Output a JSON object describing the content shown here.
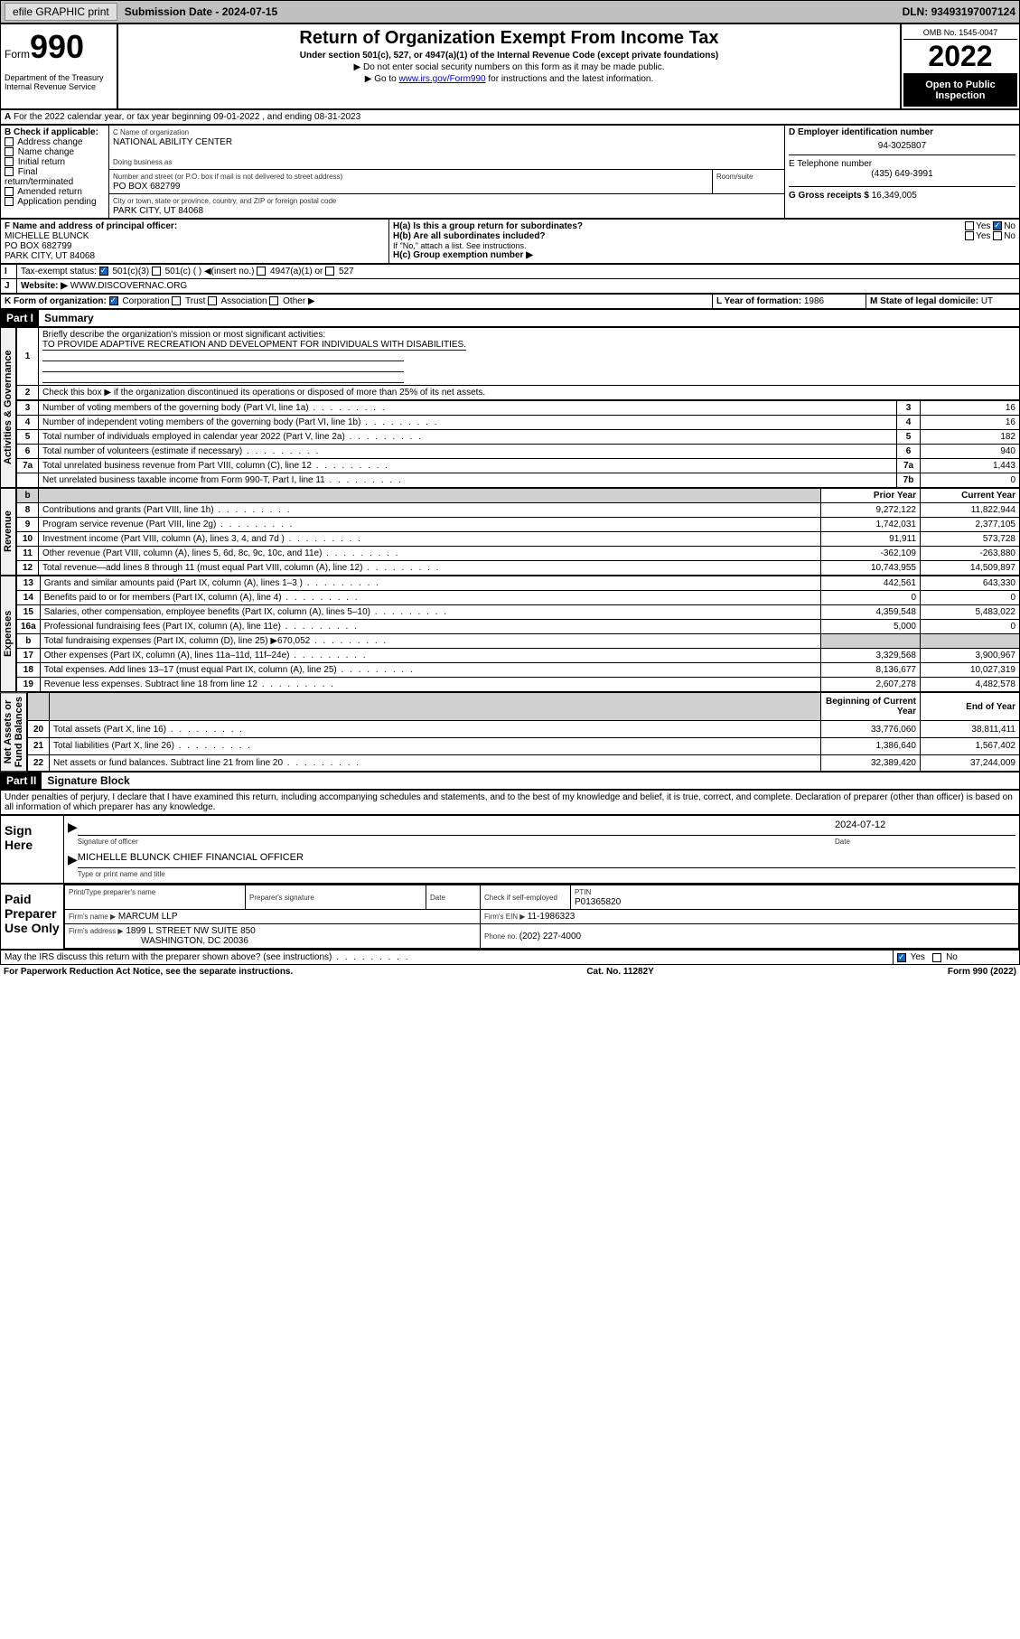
{
  "topbar": {
    "efile": "efile GRAPHIC print",
    "subdate_lbl": "Submission Date - ",
    "subdate": "2024-07-15",
    "dln_lbl": "DLN: ",
    "dln": "93493197007124"
  },
  "header": {
    "form_lbl": "Form",
    "form_no": "990",
    "dept": "Department of the Treasury\nInternal Revenue Service",
    "title": "Return of Organization Exempt From Income Tax",
    "sub": "Under section 501(c), 527, or 4947(a)(1) of the Internal Revenue Code (except private foundations)",
    "note1": "▶ Do not enter social security numbers on this form as it may be made public.",
    "note2_pre": "▶ Go to ",
    "note2_link": "www.irs.gov/Form990",
    "note2_post": " for instructions and the latest information.",
    "omb": "OMB No. 1545-0047",
    "year": "2022",
    "open": "Open to Public Inspection"
  },
  "A": "For the 2022 calendar year, or tax year beginning 09-01-2022  , and ending 08-31-2023",
  "B": {
    "lbl": "B Check if applicable:",
    "opts": [
      "Address change",
      "Name change",
      "Initial return",
      "Final return/terminated",
      "Amended return",
      "Application pending"
    ]
  },
  "C": {
    "name_lbl": "C Name of organization",
    "name": "NATIONAL ABILITY CENTER",
    "dba_lbl": "Doing business as",
    "dba": "",
    "street_lbl": "Number and street (or P.O. box if mail is not delivered to street address)",
    "room_lbl": "Room/suite",
    "street": "PO BOX 682799",
    "city_lbl": "City or town, state or province, country, and ZIP or foreign postal code",
    "city": "PARK CITY, UT  84068"
  },
  "D": {
    "lbl": "D Employer identification number",
    "val": "94-3025807"
  },
  "E": {
    "lbl": "E Telephone number",
    "val": "(435) 649-3991"
  },
  "G": {
    "lbl": "G Gross receipts $ ",
    "val": "16,349,005"
  },
  "F": {
    "lbl": "F Name and address of principal officer:",
    "name": "MICHELLE BLUNCK",
    "addr1": "PO BOX 682799",
    "addr2": "PARK CITY, UT  84068"
  },
  "H": {
    "a": "H(a)  Is this a group return for subordinates?",
    "b": "H(b)  Are all subordinates included?",
    "bnote": "If \"No,\" attach a list. See instructions.",
    "c": "H(c)  Group exemption number ▶",
    "yes": "Yes",
    "no": "No"
  },
  "I": {
    "lbl": "Tax-exempt status:",
    "o1": "501(c)(3)",
    "o2": "501(c) (  ) ◀(insert no.)",
    "o3": "4947(a)(1) or",
    "o4": "527"
  },
  "J": {
    "lbl": "Website: ▶",
    "val": "WWW.DISCOVERNAC.ORG"
  },
  "K": {
    "lbl": "K Form of organization:",
    "o1": "Corporation",
    "o2": "Trust",
    "o3": "Association",
    "o4": "Other ▶"
  },
  "L": {
    "lbl": "L Year of formation: ",
    "val": "1986"
  },
  "M": {
    "lbl": "M State of legal domicile: ",
    "val": "UT"
  },
  "partI": {
    "hdr": "Part I",
    "title": "Summary",
    "q1": "Briefly describe the organization's mission or most significant activities:",
    "q1a": "TO PROVIDE ADAPTIVE RECREATION AND DEVELOPMENT FOR INDIVIDUALS WITH DISABILITIES.",
    "q2": "Check this box ▶      if the organization discontinued its operations or disposed of more than 25% of its net assets.",
    "lines3_7": [
      {
        "n": "3",
        "t": "Number of voting members of the governing body (Part VI, line 1a)",
        "bn": "3",
        "v": "16"
      },
      {
        "n": "4",
        "t": "Number of independent voting members of the governing body (Part VI, line 1b)",
        "bn": "4",
        "v": "16"
      },
      {
        "n": "5",
        "t": "Total number of individuals employed in calendar year 2022 (Part V, line 2a)",
        "bn": "5",
        "v": "182"
      },
      {
        "n": "6",
        "t": "Total number of volunteers (estimate if necessary)",
        "bn": "6",
        "v": "940"
      },
      {
        "n": "7a",
        "t": "Total unrelated business revenue from Part VIII, column (C), line 12",
        "bn": "7a",
        "v": "1,443"
      },
      {
        "n": "",
        "t": "Net unrelated business taxable income from Form 990-T, Part I, line 11",
        "bn": "7b",
        "v": "0"
      }
    ],
    "tbl_hdr_prior": "Prior Year",
    "tbl_hdr_curr": "Current Year",
    "revenue": [
      {
        "n": "8",
        "t": "Contributions and grants (Part VIII, line 1h)",
        "p": "9,272,122",
        "c": "11,822,944"
      },
      {
        "n": "9",
        "t": "Program service revenue (Part VIII, line 2g)",
        "p": "1,742,031",
        "c": "2,377,105"
      },
      {
        "n": "10",
        "t": "Investment income (Part VIII, column (A), lines 3, 4, and 7d )",
        "p": "91,911",
        "c": "573,728"
      },
      {
        "n": "11",
        "t": "Other revenue (Part VIII, column (A), lines 5, 6d, 8c, 9c, 10c, and 11e)",
        "p": "-362,109",
        "c": "-263,880"
      },
      {
        "n": "12",
        "t": "Total revenue—add lines 8 through 11 (must equal Part VIII, column (A), line 12)",
        "p": "10,743,955",
        "c": "14,509,897"
      }
    ],
    "expenses": [
      {
        "n": "13",
        "t": "Grants and similar amounts paid (Part IX, column (A), lines 1–3 )",
        "p": "442,561",
        "c": "643,330"
      },
      {
        "n": "14",
        "t": "Benefits paid to or for members (Part IX, column (A), line 4)",
        "p": "0",
        "c": "0"
      },
      {
        "n": "15",
        "t": "Salaries, other compensation, employee benefits (Part IX, column (A), lines 5–10)",
        "p": "4,359,548",
        "c": "5,483,022"
      },
      {
        "n": "16a",
        "t": "Professional fundraising fees (Part IX, column (A), line 11e)",
        "p": "5,000",
        "c": "0"
      },
      {
        "n": "b",
        "t": "Total fundraising expenses (Part IX, column (D), line 25) ▶670,052",
        "p": "",
        "c": "",
        "shade": true
      },
      {
        "n": "17",
        "t": "Other expenses (Part IX, column (A), lines 11a–11d, 11f–24e)",
        "p": "3,329,568",
        "c": "3,900,967"
      },
      {
        "n": "18",
        "t": "Total expenses. Add lines 13–17 (must equal Part IX, column (A), line 25)",
        "p": "8,136,677",
        "c": "10,027,319"
      },
      {
        "n": "19",
        "t": "Revenue less expenses. Subtract line 18 from line 12",
        "p": "2,607,278",
        "c": "4,482,578"
      }
    ],
    "na_hdr_beg": "Beginning of Current Year",
    "na_hdr_end": "End of Year",
    "netassets": [
      {
        "n": "20",
        "t": "Total assets (Part X, line 16)",
        "p": "33,776,060",
        "c": "38,811,411"
      },
      {
        "n": "21",
        "t": "Total liabilities (Part X, line 26)",
        "p": "1,386,640",
        "c": "1,567,402"
      },
      {
        "n": "22",
        "t": "Net assets or fund balances. Subtract line 21 from line 20",
        "p": "32,389,420",
        "c": "37,244,009"
      }
    ],
    "vlabels": {
      "ag": "Activities & Governance",
      "rev": "Revenue",
      "exp": "Expenses",
      "na": "Net Assets or\nFund Balances"
    }
  },
  "partII": {
    "hdr": "Part II",
    "title": "Signature Block",
    "decl": "Under penalties of perjury, I declare that I have examined this return, including accompanying schedules and statements, and to the best of my knowledge and belief, it is true, correct, and complete. Declaration of preparer (other than officer) is based on all information of which preparer has any knowledge.",
    "sign_here": "Sign Here",
    "sig_officer": "Signature of officer",
    "date": "Date",
    "sig_date": "2024-07-12",
    "officer_name": "MICHELLE BLUNCK  CHIEF FINANCIAL OFFICER",
    "officer_name_lbl": "Type or print name and title",
    "paid": "Paid Preparer Use Only",
    "prep_name_lbl": "Print/Type preparer's name",
    "prep_sig_lbl": "Preparer's signature",
    "date_lbl": "Date",
    "check_se": "Check        if self-employed",
    "ptin_lbl": "PTIN",
    "ptin": "P01365820",
    "firm_name_lbl": "Firm's name   ▶",
    "firm_name": "MARCUM LLP",
    "firm_ein_lbl": "Firm's EIN ▶ ",
    "firm_ein": "11-1986323",
    "firm_addr_lbl": "Firm's address ▶",
    "firm_addr1": "1899 L STREET NW SUITE 850",
    "firm_addr2": "WASHINGTON, DC  20036",
    "phone_lbl": "Phone no. ",
    "phone": "(202) 227-4000",
    "discuss": "May the IRS discuss this return with the preparer shown above? (see instructions)",
    "yes": "Yes",
    "no": "No"
  },
  "footer": {
    "l": "For Paperwork Reduction Act Notice, see the separate instructions.",
    "m": "Cat. No. 11282Y",
    "r": "Form 990 (2022)"
  }
}
